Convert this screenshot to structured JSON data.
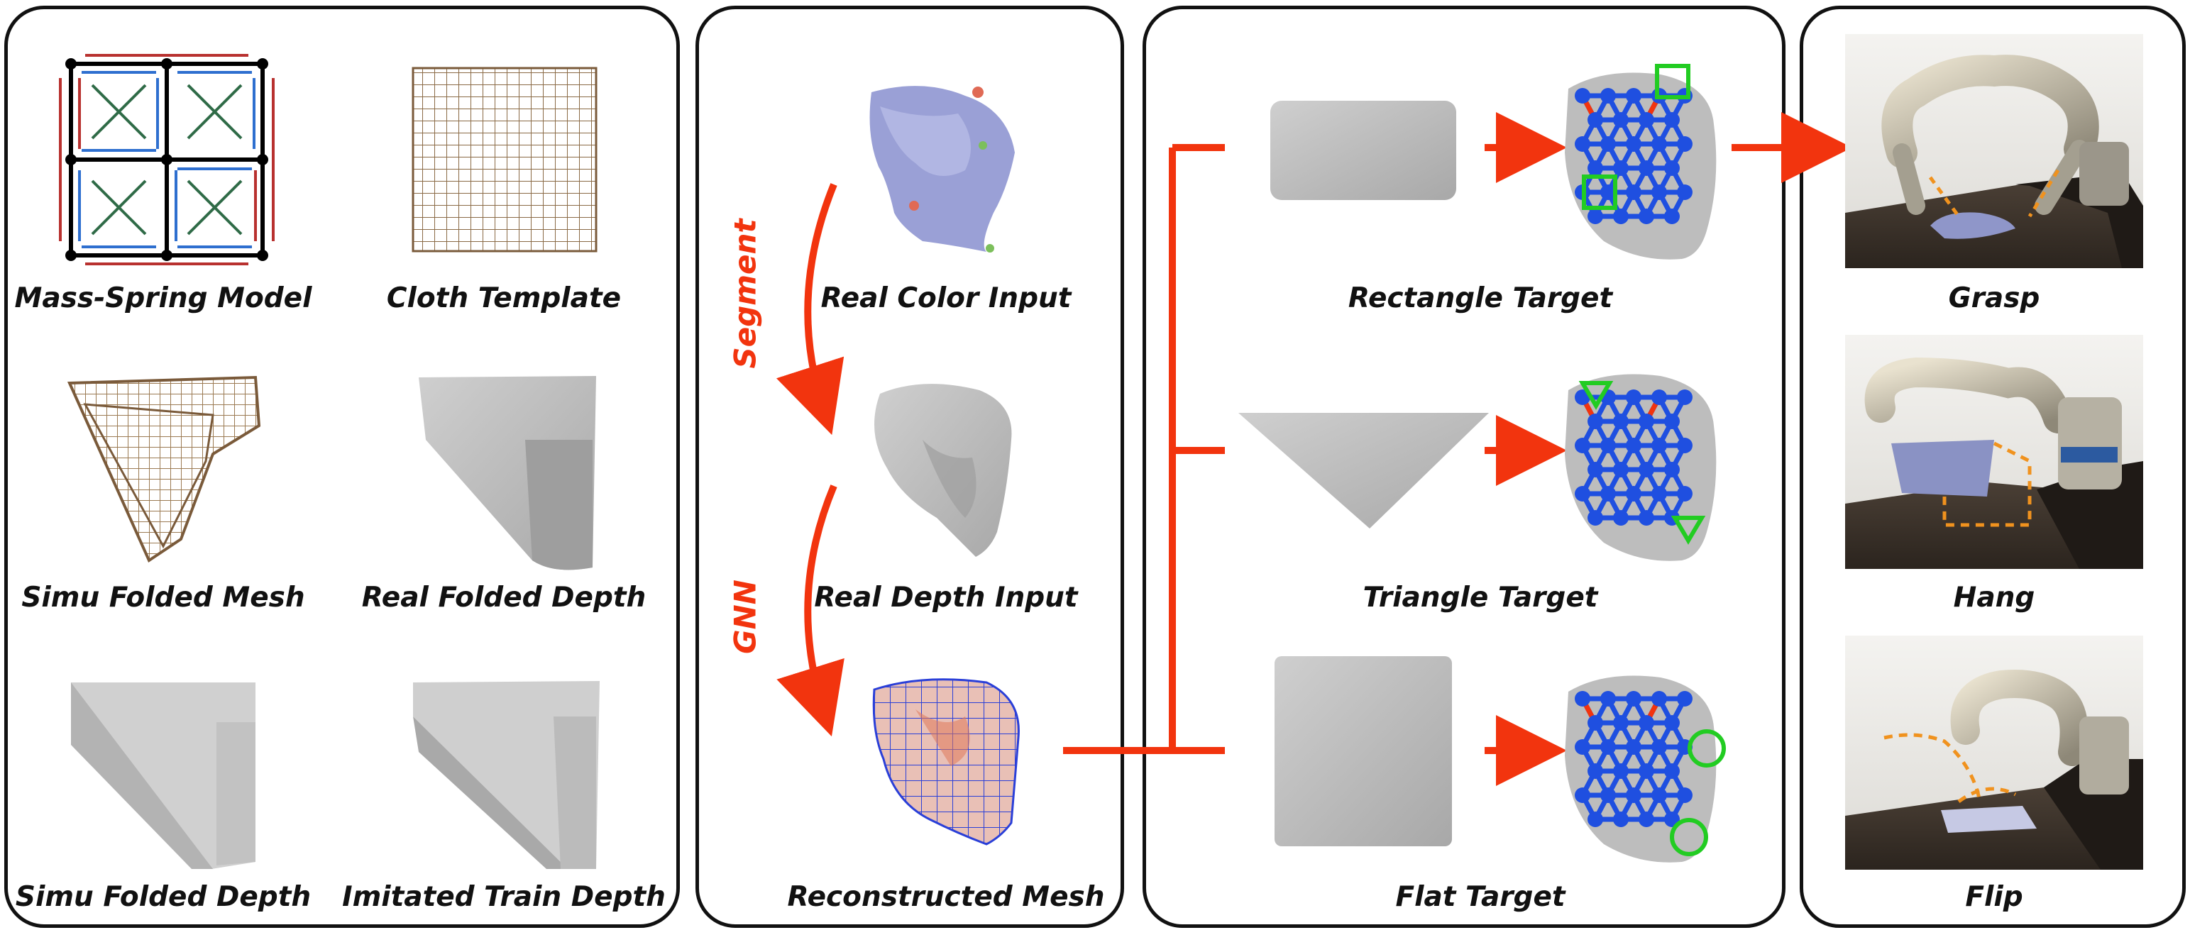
{
  "panels": {
    "simulation": {
      "labels": {
        "mass_spring": "Mass-Spring Model",
        "cloth_template": "Cloth Template",
        "simu_folded_mesh": "Simu Folded Mesh",
        "real_folded_depth": "Real Folded Depth",
        "simu_folded_depth": "Simu Folded Depth",
        "imitated_train_depth": "Imitated Train Depth"
      }
    },
    "perception": {
      "labels": {
        "real_color": "Real Color Input",
        "real_depth": "Real Depth Input",
        "reconstructed": "Reconstructed Mesh"
      },
      "steps": {
        "segment": "Segment",
        "gnn": "GNN"
      }
    },
    "targets": {
      "labels": {
        "rectangle": "Rectangle Target",
        "triangle": "Triangle Target",
        "flat": "Flat Target"
      }
    },
    "robot": {
      "labels": {
        "grasp": "Grasp",
        "hang": "Hang",
        "flip": "Flip"
      }
    }
  },
  "colors": {
    "arrow_red": "#f2340e",
    "spring_red": "#b8312f",
    "spring_blue": "#2e6fcf",
    "spring_green": "#2f6b47",
    "graph_blue": "#1f4fe0",
    "grasp_green": "#22cc22",
    "cloth_gray": "#bdbdbd"
  }
}
